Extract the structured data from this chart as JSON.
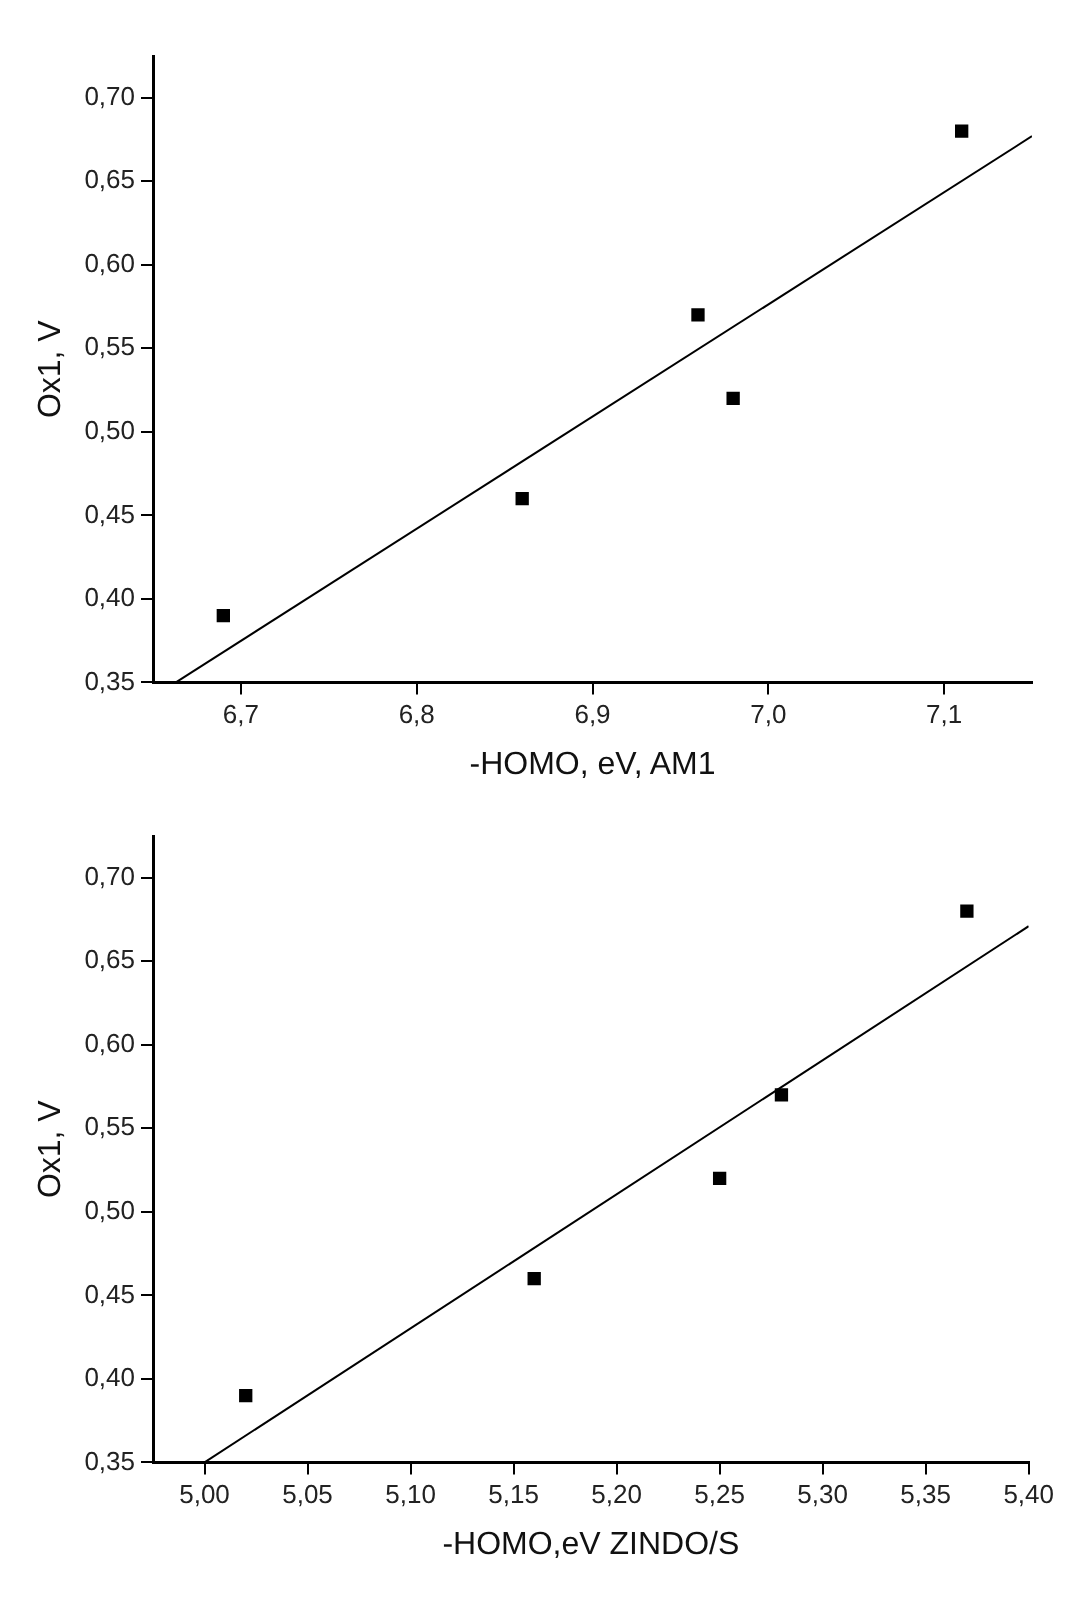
{
  "chart_data": [
    {
      "type": "scatter",
      "xlabel": "-HOMO, eV, AM1",
      "ylabel": "Ox1, V",
      "xlim": [
        6.65,
        7.15
      ],
      "ylim": [
        0.35,
        0.725
      ],
      "xticks": [
        {
          "value": 6.7,
          "label": "6,7"
        },
        {
          "value": 6.8,
          "label": "6,8"
        },
        {
          "value": 6.9,
          "label": "6,9"
        },
        {
          "value": 7.0,
          "label": "7,0"
        },
        {
          "value": 7.1,
          "label": "7,1"
        }
      ],
      "yticks": [
        {
          "value": 0.35,
          "label": "0,35"
        },
        {
          "value": 0.4,
          "label": "0,40"
        },
        {
          "value": 0.45,
          "label": "0,45"
        },
        {
          "value": 0.5,
          "label": "0,50"
        },
        {
          "value": 0.55,
          "label": "0,55"
        },
        {
          "value": 0.6,
          "label": "0,60"
        },
        {
          "value": 0.65,
          "label": "0,65"
        },
        {
          "value": 0.7,
          "label": "0,70"
        }
      ],
      "grid": false,
      "legend": false,
      "series": [
        {
          "type": "scatter",
          "color": "#000000",
          "marker": "square",
          "x": [
            6.69,
            6.86,
            6.96,
            6.98,
            7.11
          ],
          "values": [
            0.39,
            0.46,
            0.57,
            0.52,
            0.68
          ]
        },
        {
          "type": "line",
          "color": "#000000",
          "marker": "none",
          "line_style": "solid",
          "x": [
            6.663,
            7.15
          ],
          "values": [
            0.35,
            0.677
          ]
        }
      ]
    },
    {
      "type": "scatter",
      "xlabel": "-HOMO,eV ZINDO/S",
      "ylabel": "Ox1, V",
      "xlim": [
        4.975,
        5.4
      ],
      "ylim": [
        0.35,
        0.725
      ],
      "xticks": [
        {
          "value": 5.0,
          "label": "5,00"
        },
        {
          "value": 5.05,
          "label": "5,05"
        },
        {
          "value": 5.1,
          "label": "5,10"
        },
        {
          "value": 5.15,
          "label": "5,15"
        },
        {
          "value": 5.2,
          "label": "5,20"
        },
        {
          "value": 5.25,
          "label": "5,25"
        },
        {
          "value": 5.3,
          "label": "5,30"
        },
        {
          "value": 5.35,
          "label": "5,35"
        },
        {
          "value": 5.4,
          "label": "5,40"
        }
      ],
      "yticks": [
        {
          "value": 0.35,
          "label": "0,35"
        },
        {
          "value": 0.4,
          "label": "0,40"
        },
        {
          "value": 0.45,
          "label": "0,45"
        },
        {
          "value": 0.5,
          "label": "0,50"
        },
        {
          "value": 0.55,
          "label": "0,55"
        },
        {
          "value": 0.6,
          "label": "0,60"
        },
        {
          "value": 0.65,
          "label": "0,65"
        },
        {
          "value": 0.7,
          "label": "0,70"
        }
      ],
      "grid": false,
      "legend": false,
      "series": [
        {
          "type": "scatter",
          "color": "#000000",
          "marker": "square",
          "x": [
            5.02,
            5.16,
            5.25,
            5.28,
            5.37
          ],
          "values": [
            0.39,
            0.46,
            0.52,
            0.57,
            0.68
          ]
        },
        {
          "type": "line",
          "color": "#000000",
          "marker": "none",
          "line_style": "solid",
          "x": [
            5.0,
            5.4
          ],
          "values": [
            0.35,
            0.671
          ]
        }
      ]
    }
  ]
}
